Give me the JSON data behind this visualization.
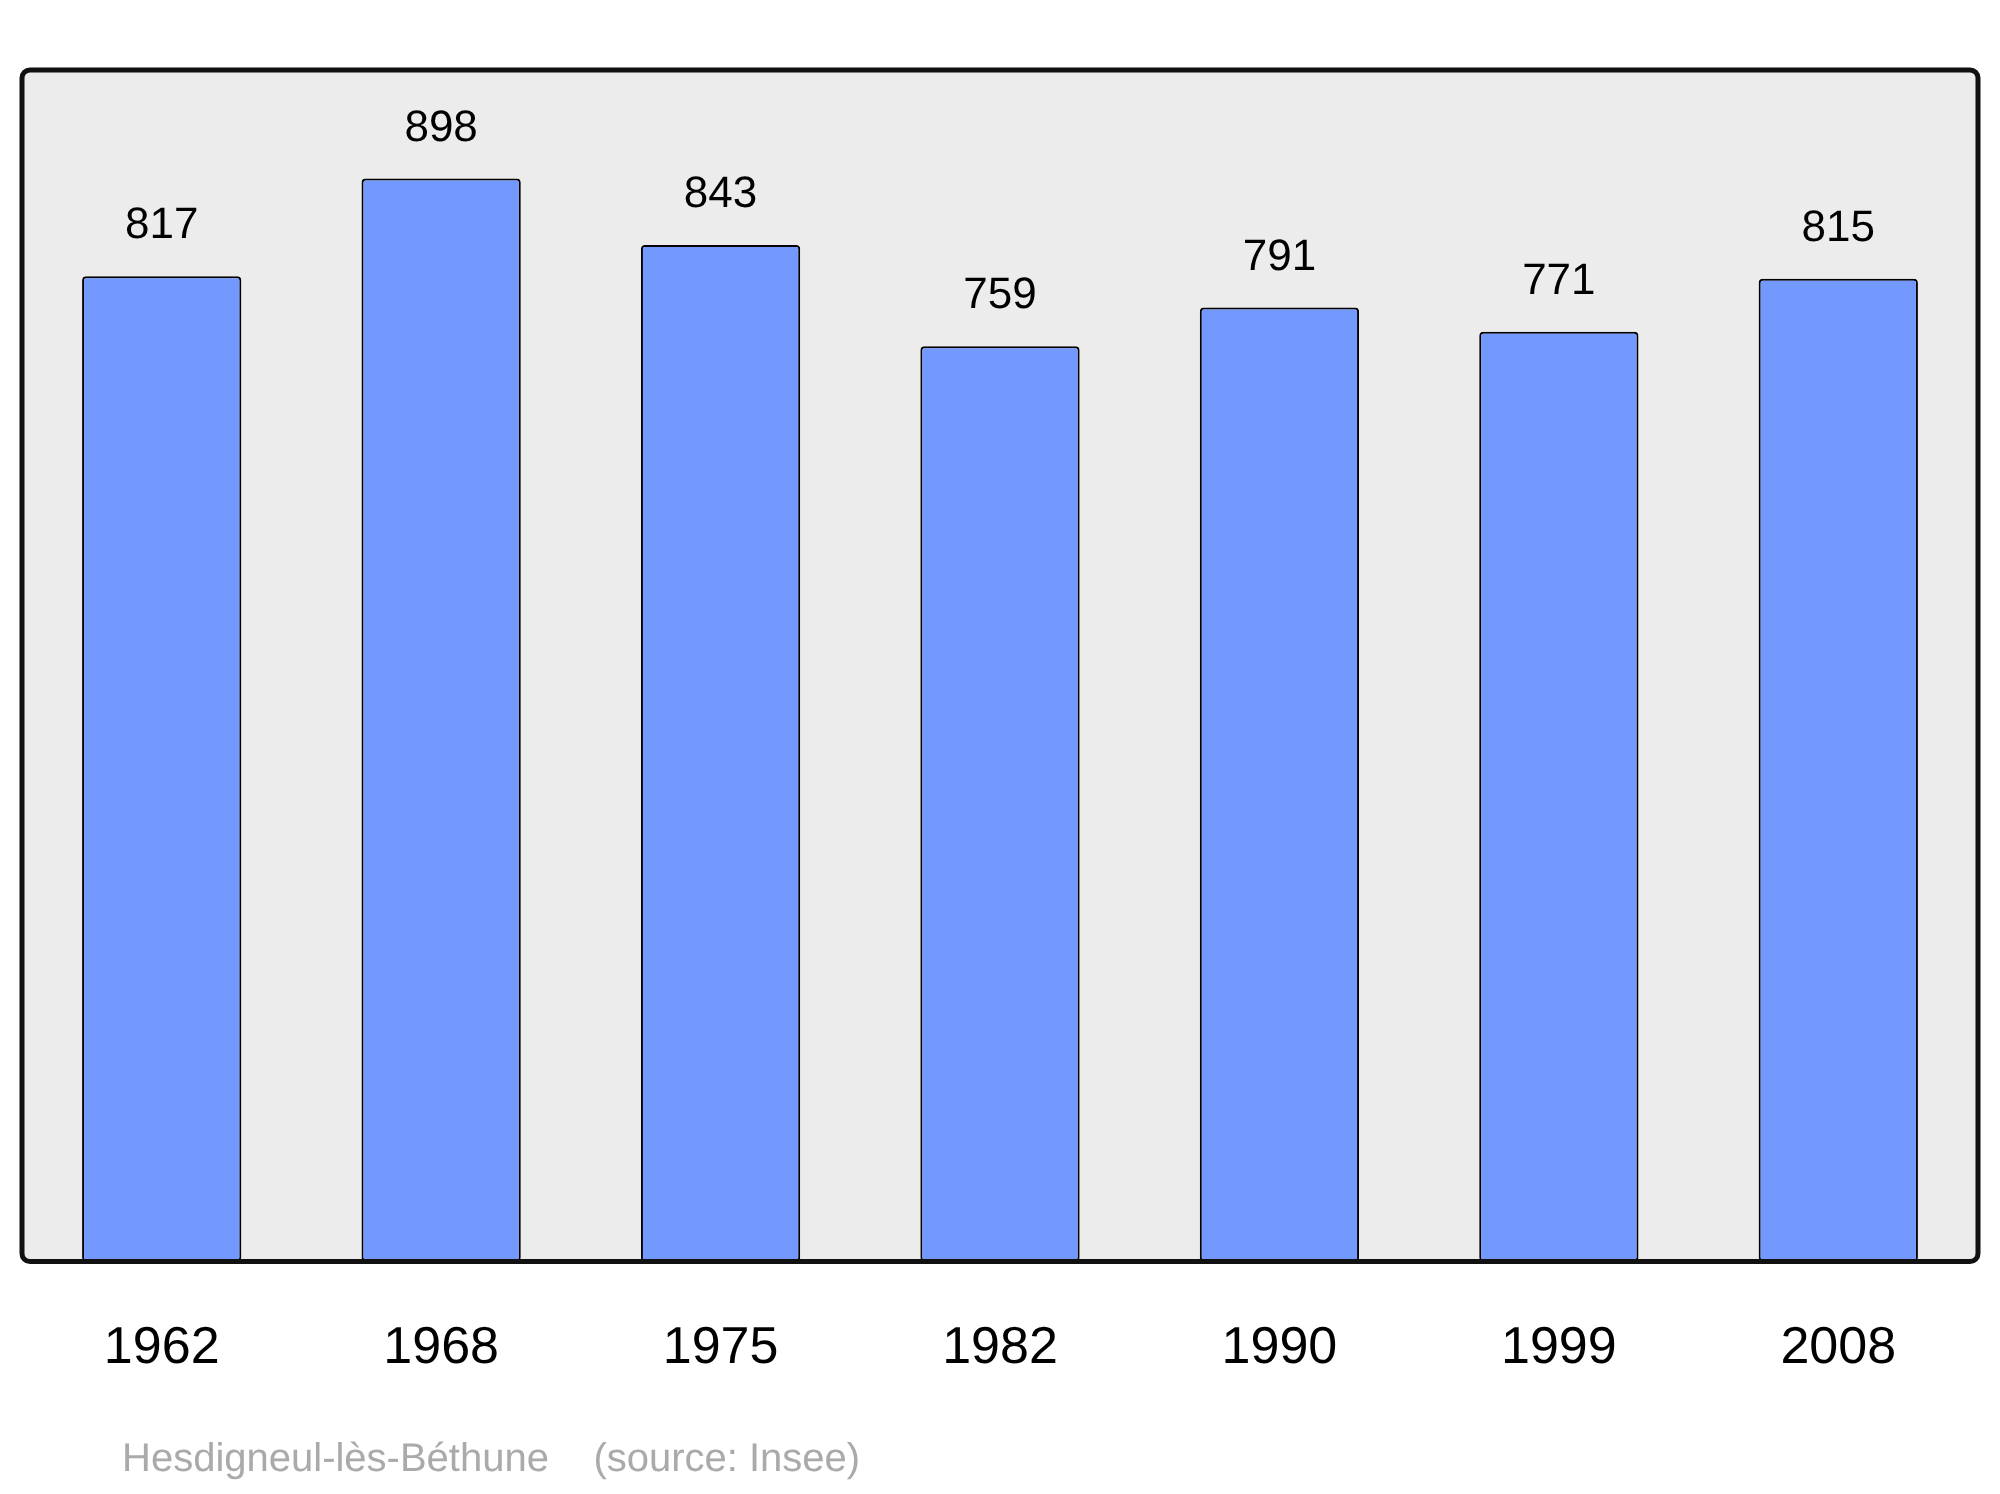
{
  "chart_data": {
    "type": "bar",
    "categories": [
      "1962",
      "1968",
      "1975",
      "1982",
      "1990",
      "1999",
      "2008"
    ],
    "values": [
      817,
      898,
      843,
      759,
      791,
      771,
      815
    ],
    "color": "#7399ff",
    "ylim": [
      0,
      988
    ],
    "data_labels": true,
    "grid": false,
    "legend": false,
    "annotations": [
      "Hesdigneul-lès-Béthune    (source: Insee)"
    ]
  }
}
